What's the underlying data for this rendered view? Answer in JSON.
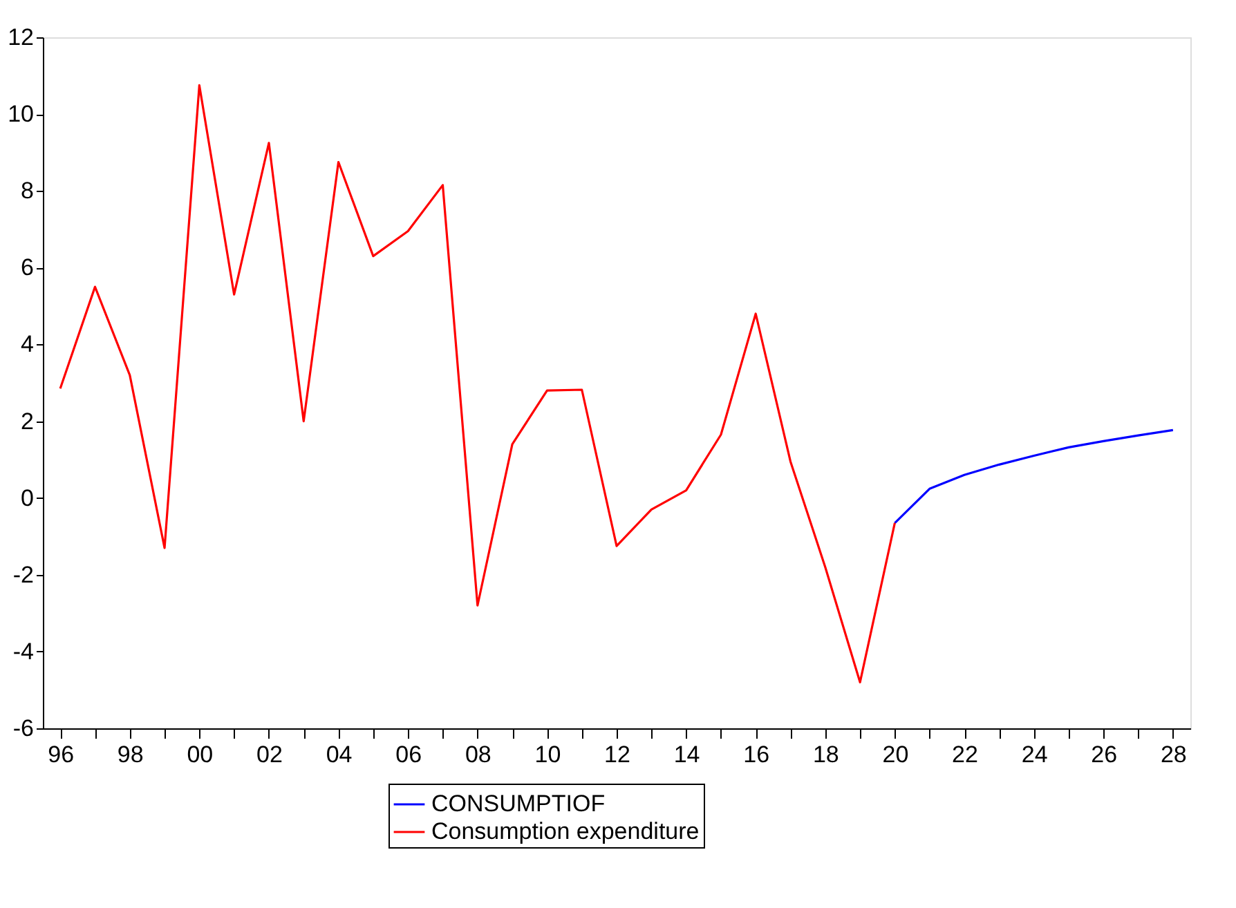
{
  "chart_data": {
    "type": "line",
    "x": [
      1996,
      1997,
      1998,
      1999,
      2000,
      2001,
      2002,
      2003,
      2004,
      2005,
      2006,
      2007,
      2008,
      2009,
      2010,
      2011,
      2012,
      2013,
      2014,
      2015,
      2016,
      2017,
      2018,
      2019,
      2020,
      2021,
      2022,
      2023,
      2024,
      2025,
      2026,
      2027,
      2028
    ],
    "series": [
      {
        "name": "CONSUMPTIOF",
        "color": "#0000ff",
        "values": [
          null,
          null,
          null,
          null,
          null,
          null,
          null,
          null,
          null,
          null,
          null,
          null,
          null,
          null,
          null,
          null,
          null,
          null,
          null,
          null,
          null,
          null,
          null,
          null,
          -0.65,
          0.24,
          0.6,
          0.87,
          1.1,
          1.32,
          1.48,
          1.63,
          1.77
        ]
      },
      {
        "name": "Consumption expenditure",
        "color": "#ff0000",
        "values": [
          2.85,
          5.5,
          3.2,
          -1.3,
          10.75,
          5.3,
          9.25,
          2.0,
          8.75,
          6.3,
          6.95,
          8.15,
          -2.8,
          1.4,
          2.8,
          2.82,
          -1.25,
          -0.3,
          0.2,
          1.65,
          4.8,
          0.95,
          -1.8,
          -4.8,
          -0.65,
          null,
          null,
          null,
          null,
          null,
          null,
          null,
          null
        ]
      }
    ],
    "xlim": [
      1995.5,
      2028.5
    ],
    "xticks": [
      {
        "value": 1996,
        "label": "96"
      },
      {
        "value": 1997,
        "label": null
      },
      {
        "value": 1998,
        "label": "98"
      },
      {
        "value": 1999,
        "label": null
      },
      {
        "value": 2000,
        "label": "00"
      },
      {
        "value": 2001,
        "label": null
      },
      {
        "value": 2002,
        "label": "02"
      },
      {
        "value": 2003,
        "label": null
      },
      {
        "value": 2004,
        "label": "04"
      },
      {
        "value": 2005,
        "label": null
      },
      {
        "value": 2006,
        "label": "06"
      },
      {
        "value": 2007,
        "label": null
      },
      {
        "value": 2008,
        "label": "08"
      },
      {
        "value": 2009,
        "label": null
      },
      {
        "value": 2010,
        "label": "10"
      },
      {
        "value": 2011,
        "label": null
      },
      {
        "value": 2012,
        "label": "12"
      },
      {
        "value": 2013,
        "label": null
      },
      {
        "value": 2014,
        "label": "14"
      },
      {
        "value": 2015,
        "label": null
      },
      {
        "value": 2016,
        "label": "16"
      },
      {
        "value": 2017,
        "label": null
      },
      {
        "value": 2018,
        "label": "18"
      },
      {
        "value": 2019,
        "label": null
      },
      {
        "value": 2020,
        "label": "20"
      },
      {
        "value": 2021,
        "label": null
      },
      {
        "value": 2022,
        "label": "22"
      },
      {
        "value": 2023,
        "label": null
      },
      {
        "value": 2024,
        "label": "24"
      },
      {
        "value": 2025,
        "label": null
      },
      {
        "value": 2026,
        "label": "26"
      },
      {
        "value": 2027,
        "label": null
      },
      {
        "value": 2028,
        "label": "28"
      }
    ],
    "ylim": [
      -6,
      12
    ],
    "yticks": [
      -6,
      -4,
      -2,
      0,
      2,
      4,
      6,
      8,
      10,
      12
    ],
    "legend": "bottom"
  }
}
